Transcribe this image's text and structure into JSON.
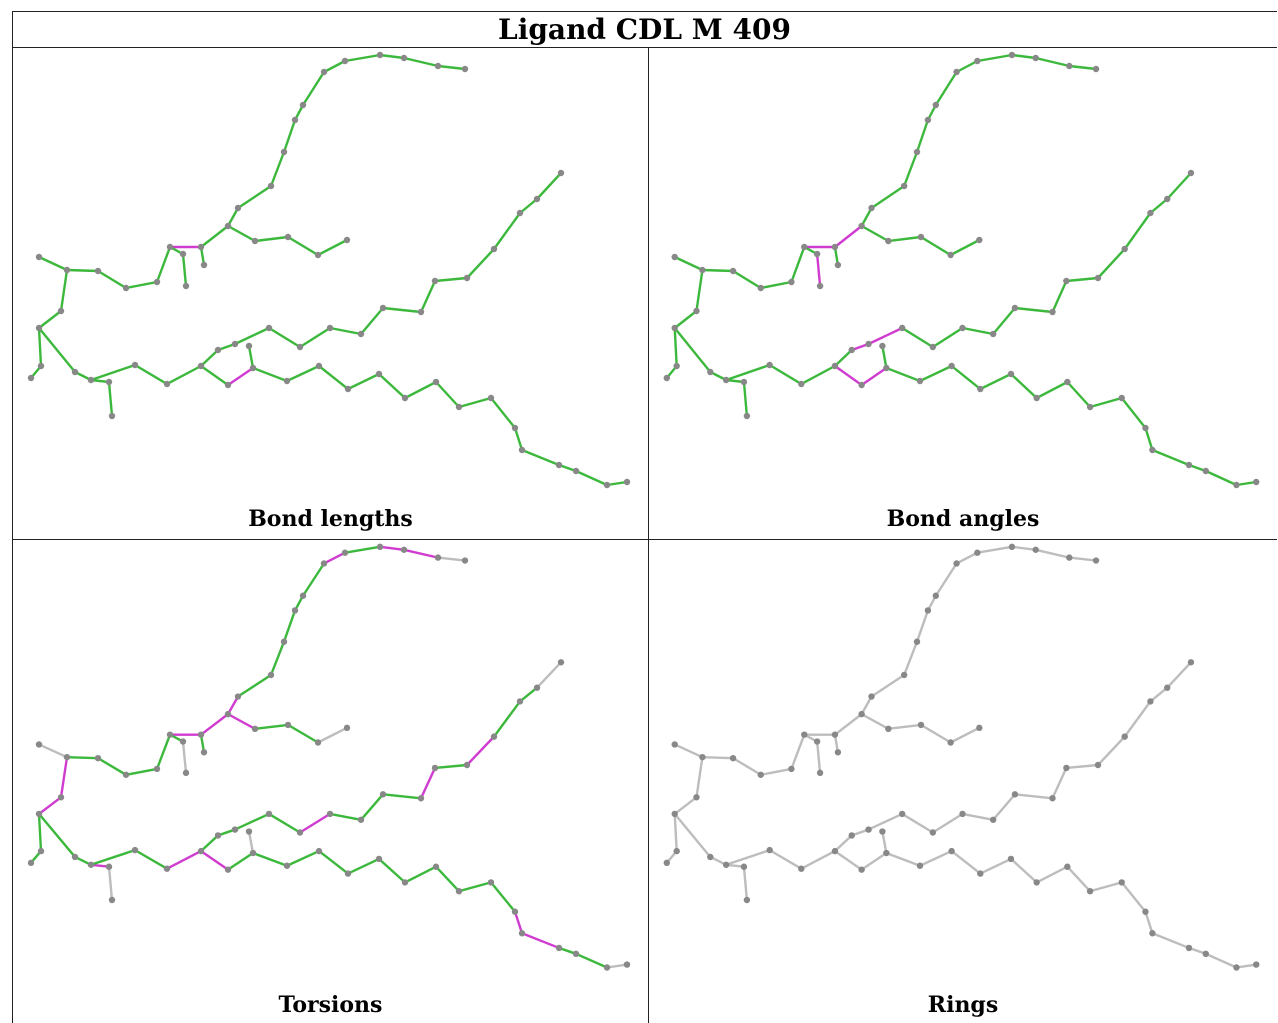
{
  "title": "Ligand CDL M 409",
  "panels": [
    {
      "caption": "Bond lengths",
      "color_mode": "bond_lengths"
    },
    {
      "caption": "Bond angles",
      "color_mode": "bond_angles"
    },
    {
      "caption": "Torsions",
      "color_mode": "torsions"
    },
    {
      "caption": "Rings",
      "color_mode": "rings"
    }
  ],
  "colors": {
    "ok": "#3cb83c",
    "outlier": "#d03cd0",
    "neutral": "#bdbdbd",
    "atom": "#888888",
    "border": "#222222"
  }
}
